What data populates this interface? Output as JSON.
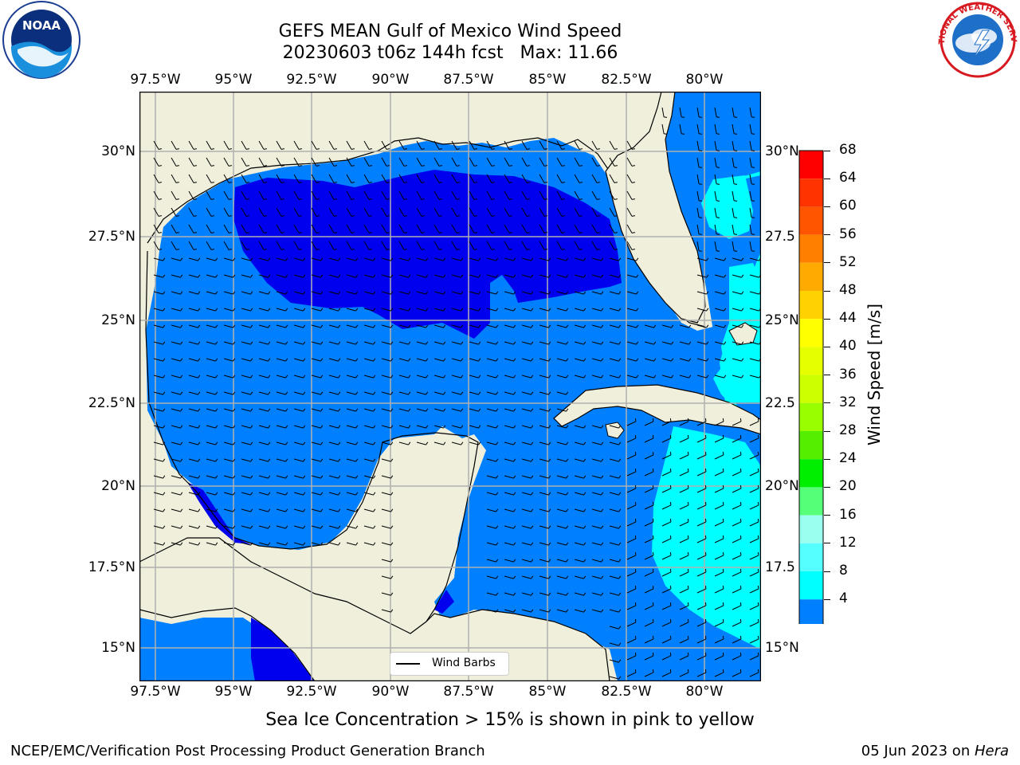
{
  "header": {
    "title_line1": "GEFS MEAN Gulf of Mexico Wind Speed",
    "title_line2": "20230603 t06z 144h fcst   Max: 11.66"
  },
  "axes": {
    "lon_labels": [
      "97.5°W",
      "95°W",
      "92.5°W",
      "90°W",
      "87.5°W",
      "85°W",
      "82.5°W",
      "80°W"
    ],
    "lat_labels_left": [
      "30°N",
      "27.5°N",
      "25°N",
      "22.5°N",
      "20°N",
      "17.5°N",
      "15°N"
    ],
    "lat_labels_right": [
      "30°N",
      "27.5",
      "25°N",
      "22.5",
      "20°N",
      "17.5",
      "15°N"
    ]
  },
  "legend": {
    "label": "Wind Barbs"
  },
  "colorbar": {
    "label": "Wind Speed [m/s]",
    "ticks": [
      "68",
      "64",
      "60",
      "56",
      "52",
      "48",
      "44",
      "40",
      "36",
      "32",
      "28",
      "24",
      "20",
      "16",
      "12",
      "8",
      "4"
    ],
    "colors": [
      "#ff0000",
      "#ff3300",
      "#ff5500",
      "#ff8000",
      "#ffaa00",
      "#ffd200",
      "#ffff00",
      "#e6ff00",
      "#ccff00",
      "#99ff00",
      "#55ee00",
      "#00ee00",
      "#55ff77",
      "#99ffee",
      "#55ffff",
      "#00ffff",
      "#0080ff"
    ],
    "extend_color": "#0000ee"
  },
  "colors": {
    "land": "#efefdc",
    "water_low": "#0000ee",
    "water_mid": "#0080ff",
    "water_high": "#00ffff",
    "grid": "#b0b0b0"
  },
  "footer": {
    "note": "Sea Ice Concentration > 15% is shown in pink to yellow",
    "credit": "NCEP/EMC/Verification Post Processing Product Generation Branch",
    "date": "05 Jun 2023 on ",
    "host": "Hera"
  },
  "logos": {
    "left": "NOAA",
    "right": "NATIONAL WEATHER SERVICE"
  }
}
